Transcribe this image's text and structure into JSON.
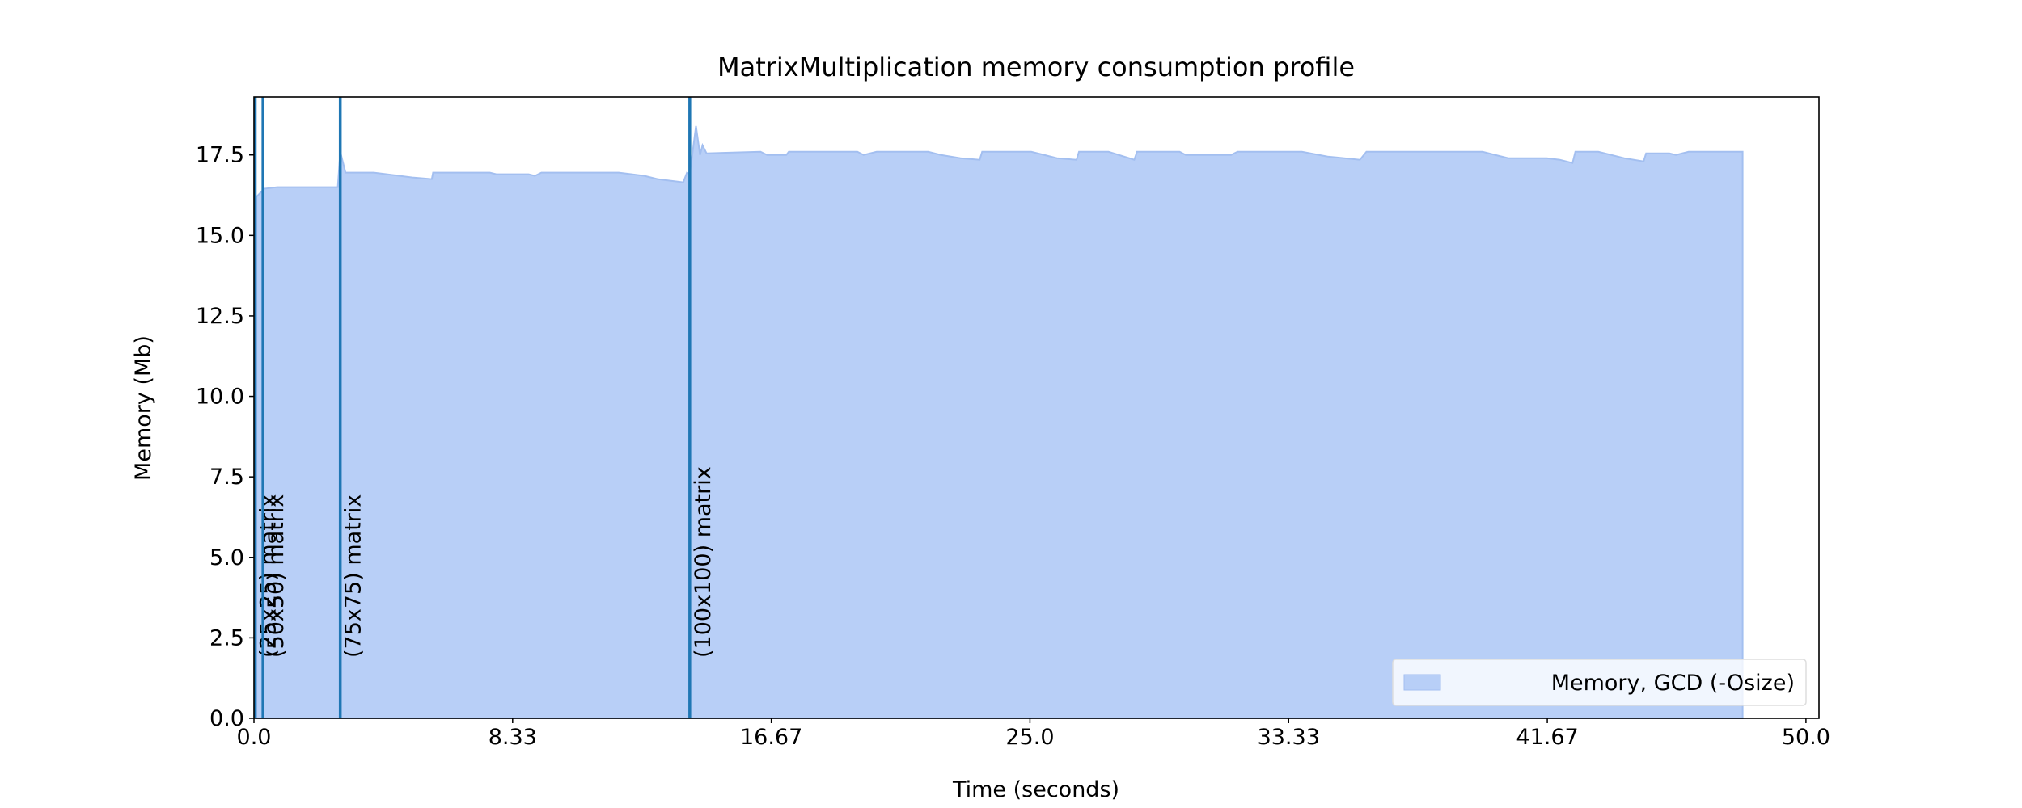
{
  "chart_data": {
    "type": "area",
    "title": "MatrixMultiplication memory consumption profile",
    "xlabel": "Time (seconds)",
    "ylabel": "Memory (Mb)",
    "x": [
      0.08,
      0.33,
      0.75,
      2.7,
      2.78,
      2.95,
      3.86,
      4.28,
      5.11,
      5.73,
      5.77,
      7.6,
      7.81,
      8.85,
      9.05,
      9.26,
      11.75,
      12.17,
      12.58,
      12.79,
      13.0,
      13.41,
      13.83,
      13.95,
      14.04,
      14.24,
      14.37,
      14.45,
      14.58,
      16.32,
      16.53,
      17.15,
      17.23,
      19.44,
      19.64,
      20.06,
      21.72,
      22.13,
      22.76,
      23.38,
      23.46,
      25.04,
      25.46,
      25.87,
      26.5,
      26.58,
      27.53,
      28.36,
      28.45,
      29.82,
      30.02,
      31.48,
      31.69,
      33.76,
      34.59,
      35.63,
      35.84,
      39.58,
      39.99,
      40.41,
      41.65,
      42.07,
      42.48,
      42.57,
      43.31,
      44.14,
      44.77,
      44.85,
      45.6,
      45.81,
      46.22,
      47.96
    ],
    "series": [
      {
        "name": "Memory, GCD (-Osize)",
        "color": "#b8cff7",
        "edge_color": "#a3bff0",
        "values": [
          16.2,
          16.45,
          16.5,
          16.5,
          17.6,
          16.95,
          16.95,
          16.9,
          16.8,
          16.75,
          16.95,
          16.95,
          16.9,
          16.9,
          16.85,
          16.95,
          16.95,
          16.9,
          16.85,
          16.8,
          16.75,
          16.7,
          16.65,
          16.95,
          16.9,
          18.4,
          17.5,
          17.8,
          17.55,
          17.6,
          17.5,
          17.5,
          17.6,
          17.6,
          17.5,
          17.6,
          17.6,
          17.5,
          17.4,
          17.35,
          17.6,
          17.6,
          17.5,
          17.4,
          17.35,
          17.6,
          17.6,
          17.35,
          17.6,
          17.6,
          17.5,
          17.5,
          17.6,
          17.6,
          17.45,
          17.35,
          17.6,
          17.6,
          17.5,
          17.4,
          17.4,
          17.35,
          17.25,
          17.6,
          17.6,
          17.4,
          17.3,
          17.55,
          17.55,
          17.5,
          17.6,
          17.6
        ]
      }
    ],
    "xlim": [
      0,
      50.42
    ],
    "ylim": [
      0,
      19.3
    ],
    "xticks": [
      {
        "value": 0,
        "label": "0.0"
      },
      {
        "value": 8.333,
        "label": "8.33"
      },
      {
        "value": 16.667,
        "label": "16.67"
      },
      {
        "value": 25,
        "label": "25.0"
      },
      {
        "value": 33.333,
        "label": "33.33"
      },
      {
        "value": 41.667,
        "label": "41.67"
      },
      {
        "value": 50,
        "label": "50.0"
      }
    ],
    "yticks": [
      {
        "value": 0,
        "label": "0.0"
      },
      2.5,
      {
        "value": 5,
        "label": "5.0"
      },
      7.5,
      {
        "value": 10,
        "label": "10.0"
      },
      12.5,
      {
        "value": 15,
        "label": "15.0"
      },
      17.5
    ],
    "annotations": [
      {
        "x": 0.04,
        "text": "(25x25) matrix"
      },
      {
        "x": 0.29,
        "text": "(50x50) matrix"
      },
      {
        "x": 2.78,
        "text": "(75x75) matrix"
      },
      {
        "x": 14.04,
        "text": "(100x100) matrix"
      }
    ],
    "annotation_color": "#1f77b4",
    "grid": false,
    "legend": "lower right"
  }
}
